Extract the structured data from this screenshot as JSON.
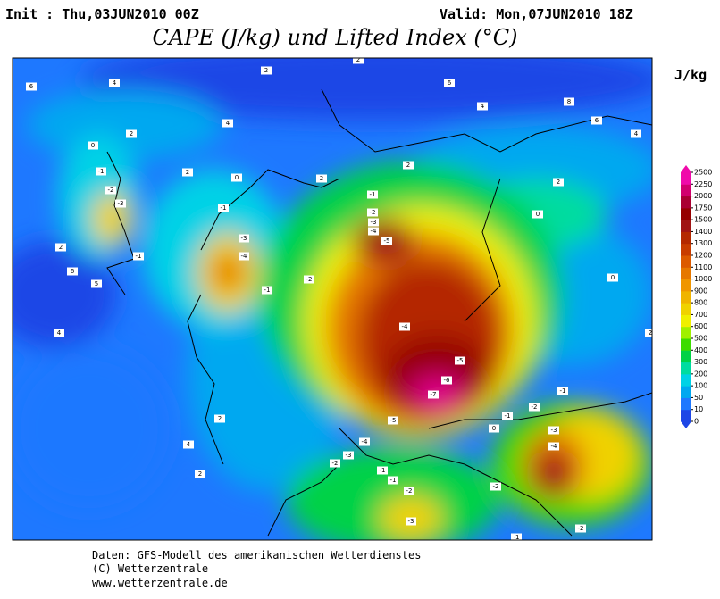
{
  "header": {
    "init": "Init : Thu,03JUN2010 00Z",
    "valid": "Valid: Mon,07JUN2010 18Z",
    "title": "CAPE (J/kg) und Lifted Index (°C)"
  },
  "legend": {
    "unit": "J/kg",
    "levels": [
      0,
      10,
      50,
      100,
      200,
      300,
      400,
      500,
      600,
      700,
      800,
      900,
      1000,
      1100,
      1200,
      1300,
      1400,
      1500,
      1750,
      2000,
      2250,
      2500
    ],
    "colors": [
      "#1e46e6",
      "#1e78ff",
      "#00a8f0",
      "#00d2e6",
      "#00dca0",
      "#00d246",
      "#3cdc00",
      "#a0f000",
      "#f0f000",
      "#f0d200",
      "#f0b400",
      "#f09600",
      "#e67800",
      "#dc5a00",
      "#c83c00",
      "#b42800",
      "#a01414",
      "#960000",
      "#aa0032",
      "#d2006e",
      "#f00aaa"
    ]
  },
  "contour_labels": [
    6,
    4,
    2,
    4,
    2,
    0,
    -1,
    -2,
    -3,
    -1,
    2,
    6,
    5,
    4,
    2,
    0,
    -1,
    -3,
    -4,
    -1,
    -2,
    -1,
    -2,
    -3,
    -4,
    -5,
    -4,
    -5,
    -6,
    -7,
    -5,
    -4,
    -3,
    -2,
    -1,
    0,
    -1,
    -2,
    -3,
    -4,
    -1,
    2,
    0,
    0,
    4,
    6,
    8,
    6,
    4,
    2,
    2,
    2,
    2,
    4,
    2,
    -2,
    -3,
    -2,
    -2,
    -1,
    2,
    -1
  ],
  "footer": {
    "line1": "Daten: GFS-Modell des amerikanischen Wetterdienstes",
    "line2": "(C) Wetterzentrale",
    "line3": "www.wetterzentrale.de"
  }
}
